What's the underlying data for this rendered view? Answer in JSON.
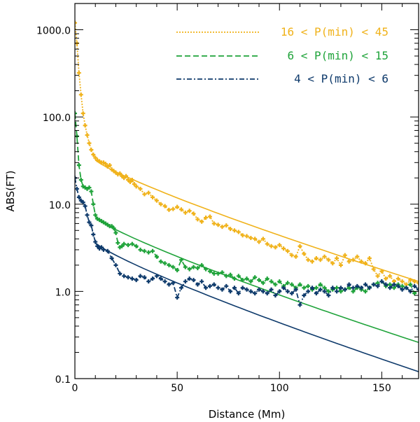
{
  "chart_data": {
    "type": "line",
    "xlabel": "Distance (Mm)",
    "ylabel": "ABS(FT)",
    "xlim": [
      0,
      168
    ],
    "ylim": [
      0.1,
      2000
    ],
    "yscale": "log",
    "x_ticks": [
      "0",
      "50",
      "100",
      "150"
    ],
    "y_ticks": [
      "0.1",
      "1.0",
      "10.0",
      "100.0",
      "1000.0"
    ],
    "legend_position": "top-right",
    "series": [
      {
        "name": "16 < P(min) < 45",
        "color": "#F0B21A",
        "style": "dotted-with-markers",
        "data": [
          [
            0,
            1200
          ],
          [
            1,
            700
          ],
          [
            2,
            320
          ],
          [
            3,
            180
          ],
          [
            4,
            110
          ],
          [
            5,
            80
          ],
          [
            6,
            62
          ],
          [
            7,
            50
          ],
          [
            8,
            42
          ],
          [
            9,
            37
          ],
          [
            10,
            34
          ],
          [
            11,
            32
          ],
          [
            12,
            31
          ],
          [
            13,
            30
          ],
          [
            14,
            30
          ],
          [
            15,
            29
          ],
          [
            16,
            27
          ],
          [
            17,
            28
          ],
          [
            18,
            25
          ],
          [
            19,
            24
          ],
          [
            20,
            23
          ],
          [
            21,
            22
          ],
          [
            22,
            22.5
          ],
          [
            23,
            21
          ],
          [
            24,
            20
          ],
          [
            25,
            21
          ],
          [
            26,
            19
          ],
          [
            27,
            18
          ],
          [
            28,
            19
          ],
          [
            29,
            17
          ],
          [
            30,
            16
          ],
          [
            32,
            15
          ],
          [
            34,
            13
          ],
          [
            36,
            13.5
          ],
          [
            38,
            12
          ],
          [
            40,
            11
          ],
          [
            42,
            10
          ],
          [
            44,
            9.5
          ],
          [
            46,
            8.6
          ],
          [
            48,
            8.8
          ],
          [
            50,
            9.3
          ],
          [
            52,
            8.7
          ],
          [
            54,
            8
          ],
          [
            56,
            8.4
          ],
          [
            58,
            7.8
          ],
          [
            60,
            6.7
          ],
          [
            62,
            6.3
          ],
          [
            64,
            7
          ],
          [
            66,
            7.2
          ],
          [
            68,
            6
          ],
          [
            70,
            5.8
          ],
          [
            72,
            5.5
          ],
          [
            74,
            5.7
          ],
          [
            76,
            5.2
          ],
          [
            78,
            5.0
          ],
          [
            80,
            4.8
          ],
          [
            82,
            4.4
          ],
          [
            84,
            4.3
          ],
          [
            86,
            4.1
          ],
          [
            88,
            4.0
          ],
          [
            90,
            3.7
          ],
          [
            92,
            4.0
          ],
          [
            94,
            3.5
          ],
          [
            96,
            3.3
          ],
          [
            98,
            3.2
          ],
          [
            100,
            3.4
          ],
          [
            102,
            3.1
          ],
          [
            104,
            2.9
          ],
          [
            106,
            2.6
          ],
          [
            108,
            2.5
          ],
          [
            110,
            3.3
          ],
          [
            112,
            2.7
          ],
          [
            114,
            2.3
          ],
          [
            116,
            2.2
          ],
          [
            118,
            2.4
          ],
          [
            120,
            2.3
          ],
          [
            122,
            2.5
          ],
          [
            124,
            2.3
          ],
          [
            126,
            2.1
          ],
          [
            128,
            2.4
          ],
          [
            130,
            2.0
          ],
          [
            132,
            2.6
          ],
          [
            134,
            2.2
          ],
          [
            136,
            2.3
          ],
          [
            138,
            2.5
          ],
          [
            140,
            2.2
          ],
          [
            142,
            2.1
          ],
          [
            144,
            2.4
          ],
          [
            146,
            1.8
          ],
          [
            148,
            1.5
          ],
          [
            150,
            1.7
          ],
          [
            152,
            1.4
          ],
          [
            154,
            1.5
          ],
          [
            156,
            1.3
          ],
          [
            158,
            1.4
          ],
          [
            160,
            1.3
          ],
          [
            162,
            1.2
          ],
          [
            164,
            1.35
          ],
          [
            166,
            1.3
          ],
          [
            168,
            1.25
          ]
        ]
      },
      {
        "name": "6 < P(min) < 15",
        "color": "#1FA33A",
        "style": "dashed-with-markers",
        "data": [
          [
            0,
            110
          ],
          [
            1,
            60
          ],
          [
            2,
            28
          ],
          [
            3,
            19
          ],
          [
            4,
            16
          ],
          [
            5,
            15.5
          ],
          [
            6,
            15
          ],
          [
            7,
            15.5
          ],
          [
            8,
            14
          ],
          [
            9,
            10
          ],
          [
            10,
            7.5
          ],
          [
            11,
            6.8
          ],
          [
            12,
            6.6
          ],
          [
            13,
            6.4
          ],
          [
            14,
            6.2
          ],
          [
            15,
            6.0
          ],
          [
            16,
            5.8
          ],
          [
            17,
            5.6
          ],
          [
            18,
            5.6
          ],
          [
            19,
            5.3
          ],
          [
            20,
            4.7
          ],
          [
            21,
            3.6
          ],
          [
            22,
            3.2
          ],
          [
            23,
            3.3
          ],
          [
            24,
            3.5
          ],
          [
            26,
            3.4
          ],
          [
            28,
            3.5
          ],
          [
            30,
            3.3
          ],
          [
            32,
            3.0
          ],
          [
            34,
            2.9
          ],
          [
            36,
            2.8
          ],
          [
            38,
            2.9
          ],
          [
            40,
            2.5
          ],
          [
            42,
            2.2
          ],
          [
            44,
            2.1
          ],
          [
            46,
            2.0
          ],
          [
            48,
            1.9
          ],
          [
            50,
            1.75
          ],
          [
            52,
            2.3
          ],
          [
            54,
            1.9
          ],
          [
            56,
            1.8
          ],
          [
            58,
            1.9
          ],
          [
            60,
            1.85
          ],
          [
            62,
            2.0
          ],
          [
            64,
            1.8
          ],
          [
            66,
            1.7
          ],
          [
            68,
            1.6
          ],
          [
            70,
            1.6
          ],
          [
            72,
            1.65
          ],
          [
            74,
            1.5
          ],
          [
            76,
            1.55
          ],
          [
            78,
            1.4
          ],
          [
            80,
            1.5
          ],
          [
            82,
            1.35
          ],
          [
            84,
            1.4
          ],
          [
            86,
            1.3
          ],
          [
            88,
            1.45
          ],
          [
            90,
            1.35
          ],
          [
            92,
            1.25
          ],
          [
            94,
            1.4
          ],
          [
            96,
            1.3
          ],
          [
            98,
            1.2
          ],
          [
            100,
            1.3
          ],
          [
            102,
            1.15
          ],
          [
            104,
            1.25
          ],
          [
            106,
            1.2
          ],
          [
            108,
            1.1
          ],
          [
            110,
            1.2
          ],
          [
            112,
            1.1
          ],
          [
            114,
            1.15
          ],
          [
            116,
            1.05
          ],
          [
            118,
            1.1
          ],
          [
            120,
            1.2
          ],
          [
            122,
            1.1
          ],
          [
            124,
            1.0
          ],
          [
            126,
            1.05
          ],
          [
            128,
            1.1
          ],
          [
            130,
            1.0
          ],
          [
            132,
            1.05
          ],
          [
            134,
            1.1
          ],
          [
            136,
            1.0
          ],
          [
            138,
            1.1
          ],
          [
            140,
            1.05
          ],
          [
            142,
            1.0
          ],
          [
            144,
            1.1
          ],
          [
            146,
            1.2
          ],
          [
            148,
            1.25
          ],
          [
            150,
            1.3
          ],
          [
            152,
            1.15
          ],
          [
            154,
            1.2
          ],
          [
            156,
            1.1
          ],
          [
            158,
            1.2
          ],
          [
            160,
            1.15
          ],
          [
            162,
            1.1
          ],
          [
            164,
            1.2
          ],
          [
            166,
            0.95
          ],
          [
            168,
            1.05
          ]
        ]
      },
      {
        "name": "4 < P(min) < 6",
        "color": "#0E3A6B",
        "style": "dash-dot-with-markers",
        "data": [
          [
            0,
            20
          ],
          [
            1,
            15
          ],
          [
            2,
            12
          ],
          [
            3,
            11
          ],
          [
            4,
            10.5
          ],
          [
            5,
            9.5
          ],
          [
            6,
            7.5
          ],
          [
            7,
            6.2
          ],
          [
            8,
            5.7
          ],
          [
            9,
            4.5
          ],
          [
            10,
            3.7
          ],
          [
            11,
            3.3
          ],
          [
            12,
            3.1
          ],
          [
            13,
            3.2
          ],
          [
            14,
            3.0
          ],
          [
            16,
            2.9
          ],
          [
            18,
            2.4
          ],
          [
            20,
            2.0
          ],
          [
            22,
            1.6
          ],
          [
            24,
            1.5
          ],
          [
            26,
            1.45
          ],
          [
            28,
            1.4
          ],
          [
            30,
            1.35
          ],
          [
            32,
            1.5
          ],
          [
            34,
            1.45
          ],
          [
            36,
            1.3
          ],
          [
            38,
            1.4
          ],
          [
            40,
            1.5
          ],
          [
            42,
            1.4
          ],
          [
            44,
            1.3
          ],
          [
            46,
            1.2
          ],
          [
            48,
            1.25
          ],
          [
            50,
            0.85
          ],
          [
            52,
            1.1
          ],
          [
            54,
            1.3
          ],
          [
            56,
            1.4
          ],
          [
            58,
            1.35
          ],
          [
            60,
            1.2
          ],
          [
            62,
            1.3
          ],
          [
            64,
            1.1
          ],
          [
            66,
            1.15
          ],
          [
            68,
            1.2
          ],
          [
            70,
            1.1
          ],
          [
            72,
            1.05
          ],
          [
            74,
            1.15
          ],
          [
            76,
            1.0
          ],
          [
            78,
            1.1
          ],
          [
            80,
            0.95
          ],
          [
            82,
            1.1
          ],
          [
            84,
            1.05
          ],
          [
            86,
            1.0
          ],
          [
            88,
            0.95
          ],
          [
            90,
            1.05
          ],
          [
            92,
            1.0
          ],
          [
            94,
            0.95
          ],
          [
            96,
            1.05
          ],
          [
            98,
            0.9
          ],
          [
            100,
            1.0
          ],
          [
            102,
            1.1
          ],
          [
            104,
            1.0
          ],
          [
            106,
            0.95
          ],
          [
            108,
            1.05
          ],
          [
            110,
            0.7
          ],
          [
            112,
            0.9
          ],
          [
            114,
            1.0
          ],
          [
            116,
            1.1
          ],
          [
            118,
            0.95
          ],
          [
            120,
            1.05
          ],
          [
            122,
            1.0
          ],
          [
            124,
            0.9
          ],
          [
            126,
            1.1
          ],
          [
            128,
            1.0
          ],
          [
            130,
            1.1
          ],
          [
            132,
            1.05
          ],
          [
            134,
            1.2
          ],
          [
            136,
            1.1
          ],
          [
            138,
            1.15
          ],
          [
            140,
            1.1
          ],
          [
            142,
            1.2
          ],
          [
            144,
            1.1
          ],
          [
            146,
            1.2
          ],
          [
            148,
            1.15
          ],
          [
            150,
            1.3
          ],
          [
            152,
            1.2
          ],
          [
            154,
            1.1
          ],
          [
            156,
            1.2
          ],
          [
            158,
            1.15
          ],
          [
            160,
            1.05
          ],
          [
            162,
            1.1
          ],
          [
            164,
            1.0
          ],
          [
            166,
            1.15
          ],
          [
            168,
            1.05
          ]
        ]
      }
    ],
    "fit_lines": [
      {
        "color": "#F0B21A",
        "x": [
          10,
          168
        ],
        "y": [
          32,
          1.3
        ]
      },
      {
        "color": "#1FA33A",
        "x": [
          10,
          168
        ],
        "y": [
          7.0,
          0.26
        ]
      },
      {
        "color": "#0E3A6B",
        "x": [
          10,
          168
        ],
        "y": [
          3.6,
          0.12
        ]
      }
    ]
  }
}
